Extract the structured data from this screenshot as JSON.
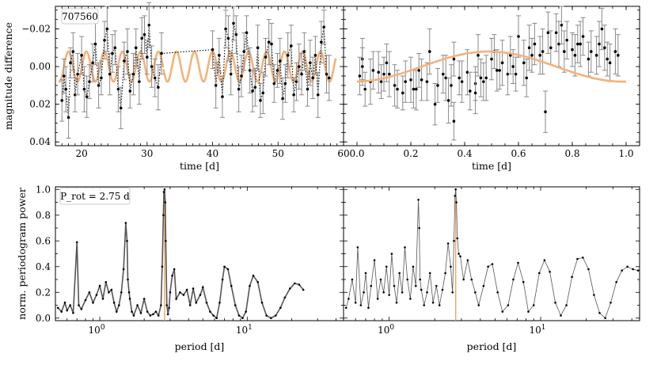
{
  "figure": {
    "annotation_id": "707560",
    "annotation_prot": "P_rot = 2.75 d",
    "prot_value": 2.75
  },
  "colors": {
    "model": "#f4b27a",
    "data": "#000000",
    "errorbar": "#8a8a8a",
    "prot_line": "#f4a460",
    "periodogram_line": "#555555"
  },
  "chart_data": [
    {
      "id": "panel-lightcurve",
      "type": "scatter",
      "xlabel": "time [d]",
      "ylabel": "magnitude difference",
      "xlim": [
        16,
        60
      ],
      "ylim": [
        0.042,
        -0.032
      ],
      "yinverted": true,
      "xticks": [
        20,
        30,
        40,
        50,
        60
      ],
      "yticks": [
        -0.02,
        0.0,
        0.02,
        0.04
      ],
      "ytick_labels": [
        "−0.02",
        "0.00",
        "0.02",
        "0.04"
      ],
      "model": {
        "amplitude": 0.008,
        "period": 2.75,
        "phase_ref": 17.3
      },
      "series": [
        {
          "x": [
            17.0,
            17.3,
            17.6,
            18.0,
            18.3,
            18.7,
            19.0,
            19.4,
            20.0,
            20.4,
            20.8,
            21.2,
            21.7,
            22.1,
            22.6,
            23.0,
            23.5,
            23.9,
            24.3,
            24.7,
            25.1,
            25.6,
            26.0,
            26.5,
            27.0,
            27.4,
            27.9,
            28.3,
            28.8,
            29.2,
            29.6,
            30.0,
            30.3,
            30.7,
            31.2,
            31.7,
            32.2,
            40.0,
            40.5,
            41.0,
            41.5,
            42.0,
            42.4,
            42.8,
            43.2,
            43.6,
            44.0,
            44.4,
            44.8,
            45.2,
            45.7,
            46.1,
            46.5,
            46.9,
            47.3,
            47.7,
            48.1,
            48.6,
            49.0,
            49.4,
            49.9,
            50.3,
            50.7,
            51.1,
            51.5,
            52.0,
            52.4,
            52.8,
            53.2,
            53.6,
            54.0,
            54.5,
            54.9,
            55.3,
            55.7,
            56.1,
            56.6,
            57.0,
            57.4,
            57.8
          ],
          "y": [
            0.018,
            0.005,
            0.012,
            0.027,
            -0.002,
            -0.008,
            0.015,
            0.004,
            -0.006,
            0.012,
            0.016,
            0.008,
            -0.002,
            -0.012,
            0.01,
            0.006,
            -0.014,
            -0.02,
            0.004,
            -0.007,
            -0.01,
            0.012,
            0.022,
            -0.003,
            -0.008,
            0.013,
            0.004,
            -0.01,
            0.008,
            -0.015,
            -0.017,
            -0.005,
            -0.022,
            0.0,
            0.006,
            0.011,
            -0.007,
            -0.009,
            0.01,
            -0.006,
            0.016,
            -0.02,
            -0.015,
            0.004,
            -0.023,
            -0.017,
            0.012,
            0.005,
            -0.008,
            -0.018,
            0.002,
            0.013,
            0.011,
            -0.01,
            0.018,
            0.014,
            -0.005,
            -0.013,
            -0.012,
            0.009,
            0.002,
            -0.003,
            0.017,
            0.009,
            -0.006,
            -0.011,
            0.015,
            0.008,
            0.0,
            0.004,
            -0.008,
            0.012,
            -0.002,
            0.006,
            -0.006,
            0.015,
            -0.013,
            -0.021,
            0.004,
            0.006
          ],
          "err": [
            0.011,
            0.009,
            0.012,
            0.011,
            0.008,
            0.01,
            0.009,
            0.011,
            0.01,
            0.012,
            0.011,
            0.009,
            0.01,
            0.011,
            0.012,
            0.009,
            0.01,
            0.012,
            0.011,
            0.01,
            0.009,
            0.012,
            0.011,
            0.01,
            0.012,
            0.009,
            0.011,
            0.01,
            0.012,
            0.011,
            0.01,
            0.009,
            0.012,
            0.011,
            0.01,
            0.012,
            0.011,
            0.01,
            0.012,
            0.009,
            0.011,
            0.01,
            0.012,
            0.011,
            0.009,
            0.01,
            0.012,
            0.011,
            0.01,
            0.009,
            0.012,
            0.011,
            0.01,
            0.012,
            0.009,
            0.011,
            0.01,
            0.012,
            0.011,
            0.01,
            0.009,
            0.012,
            0.011,
            0.01,
            0.012,
            0.011,
            0.009,
            0.01,
            0.012,
            0.011,
            0.01,
            0.009,
            0.012,
            0.011,
            0.01,
            0.012,
            0.011,
            0.009,
            0.01,
            0.012
          ]
        }
      ]
    },
    {
      "id": "panel-phasefold",
      "type": "scatter",
      "xlabel": "time [d]",
      "ylabel": "",
      "xlim": [
        -0.05,
        1.05
      ],
      "ylim": [
        0.042,
        -0.032
      ],
      "yinverted": true,
      "xticks": [
        0.0,
        0.2,
        0.4,
        0.6,
        0.8,
        1.0
      ],
      "xtick_labels": [
        "0.0",
        "0.2",
        "0.4",
        "0.6",
        "0.8",
        "1.0"
      ],
      "model": {
        "amplitude": 0.008,
        "phase_offset": 0.24
      },
      "series": [
        {
          "x": [
            0.01,
            0.02,
            0.03,
            0.05,
            0.06,
            0.08,
            0.09,
            0.11,
            0.12,
            0.14,
            0.15,
            0.17,
            0.18,
            0.2,
            0.21,
            0.23,
            0.24,
            0.26,
            0.27,
            0.29,
            0.3,
            0.32,
            0.33,
            0.35,
            0.36,
            0.38,
            0.39,
            0.41,
            0.42,
            0.44,
            0.45,
            0.47,
            0.48,
            0.5,
            0.51,
            0.53,
            0.54,
            0.56,
            0.57,
            0.59,
            0.6,
            0.62,
            0.63,
            0.65,
            0.66,
            0.68,
            0.69,
            0.71,
            0.72,
            0.74,
            0.75,
            0.77,
            0.78,
            0.8,
            0.81,
            0.83,
            0.84,
            0.86,
            0.87,
            0.89,
            0.9,
            0.91,
            0.93,
            0.94,
            0.96,
            0.97,
            0.02,
            0.1,
            0.22,
            0.34,
            0.46,
            0.58,
            0.7,
            0.82,
            0.92,
            0.44,
            0.36,
            0.76,
            0.64,
            0.52
          ],
          "y": [
            0.005,
            -0.004,
            0.012,
            0.008,
            0.002,
            0.003,
            0.008,
            -0.002,
            0.004,
            0.01,
            0.012,
            0.014,
            0.008,
            0.007,
            0.012,
            0.002,
            0.007,
            0.008,
            -0.008,
            0.02,
            0.01,
            0.004,
            0.006,
            0.01,
            0.029,
            0.006,
            0.008,
            0.003,
            0.013,
            0.009,
            -0.006,
            0.008,
            0.006,
            -0.004,
            -0.008,
            0.002,
            -0.002,
            0.004,
            -0.006,
            0.004,
            -0.016,
            -0.002,
            0.006,
            -0.006,
            -0.012,
            -0.006,
            -0.008,
            -0.018,
            -0.01,
            -0.018,
            -0.012,
            -0.008,
            -0.014,
            -0.009,
            -0.006,
            -0.012,
            -0.016,
            -0.004,
            -0.008,
            -0.006,
            -0.012,
            -0.02,
            -0.004,
            -0.002,
            -0.008,
            -0.006,
            0.0,
            0.004,
            0.012,
            0.018,
            0.006,
            0.0,
            0.024,
            -0.012,
            -0.01,
            0.014,
            -0.004,
            -0.022,
            -0.01,
            0.002
          ],
          "err": [
            0.01,
            0.011,
            0.009,
            0.012,
            0.01,
            0.011,
            0.009,
            0.01,
            0.012,
            0.011,
            0.01,
            0.009,
            0.011,
            0.012,
            0.01,
            0.009,
            0.011,
            0.01,
            0.012,
            0.011,
            0.009,
            0.01,
            0.012,
            0.011,
            0.01,
            0.009,
            0.011,
            0.012,
            0.01,
            0.009,
            0.011,
            0.01,
            0.012,
            0.011,
            0.009,
            0.01,
            0.012,
            0.011,
            0.01,
            0.009,
            0.011,
            0.012,
            0.01,
            0.009,
            0.011,
            0.01,
            0.012,
            0.011,
            0.009,
            0.01,
            0.012,
            0.011,
            0.01,
            0.009,
            0.011,
            0.012,
            0.01,
            0.009,
            0.011,
            0.01,
            0.012,
            0.011,
            0.009,
            0.01,
            0.012,
            0.011,
            0.01,
            0.009,
            0.011,
            0.012,
            0.01,
            0.009,
            0.011,
            0.01,
            0.012,
            0.011,
            0.009,
            0.01,
            0.012,
            0.011
          ]
        }
      ]
    },
    {
      "id": "panel-periodogram-1",
      "type": "line",
      "xscale": "log",
      "xlabel": "period [d]",
      "ylabel": "norm. periodogram power",
      "xlim": [
        0.5,
        45
      ],
      "ylim": [
        -0.02,
        1.02
      ],
      "yticks": [
        0.0,
        0.2,
        0.4,
        0.6,
        0.8,
        1.0
      ],
      "ytick_labels": [
        "0.0",
        "0.2",
        "0.4",
        "0.6",
        "0.8",
        "1.0"
      ],
      "xtick_labels": [
        "10^0",
        "10^1"
      ],
      "series": [
        {
          "x": [
            0.52,
            0.55,
            0.58,
            0.6,
            0.63,
            0.66,
            0.7,
            0.72,
            0.75,
            0.8,
            0.85,
            0.9,
            0.95,
            1.0,
            1.05,
            1.1,
            1.15,
            1.2,
            1.25,
            1.3,
            1.35,
            1.4,
            1.45,
            1.5,
            1.53,
            1.55,
            1.58,
            1.6,
            1.65,
            1.7,
            1.8,
            1.9,
            2.0,
            2.1,
            2.2,
            2.3,
            2.4,
            2.5,
            2.6,
            2.65,
            2.7,
            2.72,
            2.75,
            2.78,
            2.8,
            2.85,
            2.9,
            2.95,
            3.0,
            3.1,
            3.2,
            3.3,
            3.5,
            3.7,
            3.9,
            4.1,
            4.3,
            4.5,
            4.8,
            5.0,
            5.3,
            5.6,
            5.9,
            6.2,
            6.5,
            6.8,
            7.0,
            7.4,
            7.8,
            8.3,
            8.8,
            9.3,
            9.8,
            10.4,
            11.0,
            11.8,
            12.6,
            13.5,
            14.5,
            15.6,
            16.8,
            18.0,
            19.5,
            21.0,
            22.5,
            24.0
          ],
          "y": [
            0.08,
            0.05,
            0.12,
            0.06,
            0.1,
            0.04,
            0.59,
            0.1,
            0.07,
            0.14,
            0.2,
            0.12,
            0.18,
            0.25,
            0.15,
            0.28,
            0.2,
            0.22,
            0.12,
            0.05,
            0.1,
            0.2,
            0.38,
            0.74,
            0.6,
            0.3,
            0.2,
            0.15,
            0.05,
            0.02,
            0.1,
            0.04,
            0.15,
            0.05,
            0.02,
            0.03,
            0.05,
            0.02,
            0.1,
            0.4,
            0.8,
            0.98,
            1.0,
            0.9,
            0.6,
            0.1,
            0.03,
            0.08,
            0.2,
            0.33,
            0.38,
            0.15,
            0.2,
            0.18,
            0.22,
            0.1,
            0.23,
            0.12,
            0.18,
            0.24,
            0.12,
            0.05,
            0.02,
            0.0,
            0.12,
            0.3,
            0.4,
            0.38,
            0.25,
            0.1,
            0.02,
            0.0,
            0.05,
            0.25,
            0.33,
            0.28,
            0.12,
            0.02,
            0.0,
            0.02,
            0.08,
            0.16,
            0.23,
            0.27,
            0.26,
            0.22
          ]
        }
      ]
    },
    {
      "id": "panel-periodogram-2",
      "type": "line",
      "xscale": "log",
      "xlabel": "period [d]",
      "ylabel": "",
      "xlim": [
        0.5,
        45
      ],
      "ylim": [
        -0.02,
        1.02
      ],
      "xtick_labels": [
        "10^0",
        "10^1"
      ],
      "series": [
        {
          "x": [
            0.52,
            0.54,
            0.57,
            0.6,
            0.62,
            0.65,
            0.68,
            0.7,
            0.73,
            0.76,
            0.8,
            0.84,
            0.88,
            0.92,
            0.96,
            1.0,
            1.04,
            1.08,
            1.12,
            1.17,
            1.22,
            1.27,
            1.32,
            1.38,
            1.44,
            1.5,
            1.56,
            1.58,
            1.6,
            1.63,
            1.7,
            1.78,
            1.86,
            1.95,
            2.05,
            2.15,
            2.25,
            2.35,
            2.45,
            2.55,
            2.62,
            2.68,
            2.72,
            2.75,
            2.78,
            2.82,
            2.88,
            2.95,
            3.1,
            3.3,
            3.5,
            3.7,
            3.9,
            4.2,
            4.5,
            4.8,
            5.2,
            5.6,
            6.1,
            6.6,
            7.1,
            7.7,
            8.3,
            9.0,
            9.8,
            10.6,
            11.5,
            12.5,
            13.6,
            14.8,
            16.1,
            17.5,
            19.0,
            20.7,
            22.5,
            24.5,
            26.7,
            29.0,
            31.6,
            34.4,
            37.4,
            40.7,
            44.0
          ],
          "y": [
            0.08,
            0.15,
            0.3,
            0.12,
            0.55,
            0.1,
            0.2,
            0.35,
            0.08,
            0.25,
            0.45,
            0.15,
            0.3,
            0.2,
            0.4,
            0.18,
            0.5,
            0.25,
            0.12,
            0.35,
            0.2,
            0.55,
            0.3,
            0.15,
            0.4,
            0.25,
            0.92,
            0.7,
            0.3,
            0.22,
            0.1,
            0.2,
            0.35,
            0.12,
            0.25,
            0.1,
            0.22,
            0.35,
            0.58,
            0.4,
            0.2,
            0.6,
            0.95,
            1.0,
            0.9,
            0.62,
            0.5,
            0.48,
            0.3,
            0.45,
            0.3,
            0.2,
            0.1,
            0.25,
            0.4,
            0.42,
            0.2,
            0.05,
            0.1,
            0.3,
            0.43,
            0.28,
            0.05,
            0.1,
            0.35,
            0.45,
            0.36,
            0.12,
            0.02,
            0.1,
            0.32,
            0.46,
            0.47,
            0.38,
            0.18,
            0.04,
            0.0,
            0.12,
            0.28,
            0.37,
            0.4,
            0.38,
            0.37
          ]
        }
      ]
    }
  ]
}
